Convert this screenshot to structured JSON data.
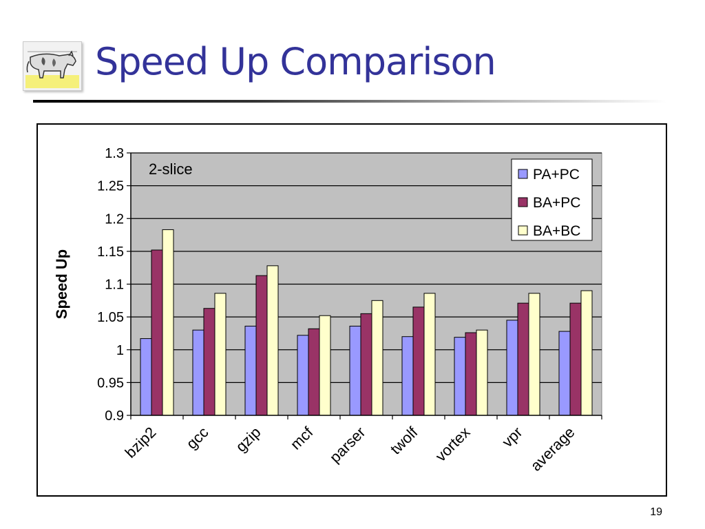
{
  "slide": {
    "title": "Speed Up Comparison",
    "number": "19"
  },
  "logo": {
    "icon": "cow-icon"
  },
  "colors": {
    "title": "#333399",
    "plot_background": "#c0c0c0",
    "PA+PC": "#9999ff",
    "BA+PC": "#993366",
    "BA+BC": "#ffffcc"
  },
  "chart_data": {
    "type": "bar",
    "title": "",
    "annotation": "2-slice",
    "xlabel": "",
    "ylabel": "Speed Up",
    "ylim": [
      0.9,
      1.3
    ],
    "yticks": [
      "0.9",
      "0.95",
      "1",
      "1.05",
      "1.1",
      "1.15",
      "1.2",
      "1.25",
      "1.3"
    ],
    "grid": true,
    "legend_position": "top-right",
    "categories": [
      "bzip2",
      "gcc",
      "gzip",
      "mcf",
      "parser",
      "twolf",
      "vortex",
      "vpr",
      "average"
    ],
    "series": [
      {
        "name": "PA+PC",
        "color": "#9999ff",
        "values": [
          1.017,
          1.03,
          1.036,
          1.022,
          1.036,
          1.02,
          1.019,
          1.045,
          1.028
        ]
      },
      {
        "name": "BA+PC",
        "color": "#993366",
        "values": [
          1.152,
          1.063,
          1.113,
          1.032,
          1.055,
          1.065,
          1.026,
          1.071,
          1.071
        ]
      },
      {
        "name": "BA+BC",
        "color": "#ffffcc",
        "values": [
          1.183,
          1.086,
          1.128,
          1.052,
          1.075,
          1.086,
          1.03,
          1.086,
          1.09
        ]
      }
    ]
  }
}
